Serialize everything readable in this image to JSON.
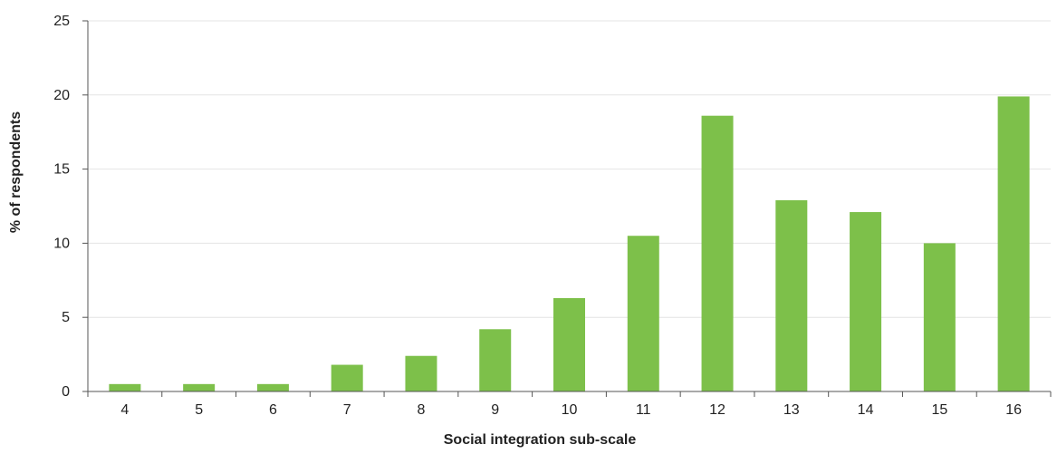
{
  "chart_data": {
    "type": "bar",
    "categories": [
      "4",
      "5",
      "6",
      "7",
      "8",
      "9",
      "10",
      "11",
      "12",
      "13",
      "14",
      "15",
      "16"
    ],
    "values": [
      0.5,
      0.5,
      0.5,
      1.8,
      2.4,
      4.2,
      6.3,
      10.5,
      18.6,
      12.9,
      12.1,
      10.0,
      19.9
    ],
    "title": "",
    "xlabel": "Social integration sub-scale",
    "ylabel": "% of respondents",
    "ylim": [
      0,
      25
    ],
    "yticks": [
      "0",
      "5",
      "10",
      "15",
      "20",
      "25"
    ],
    "grid": "horizontal",
    "bar_color": "#7dc04a"
  }
}
